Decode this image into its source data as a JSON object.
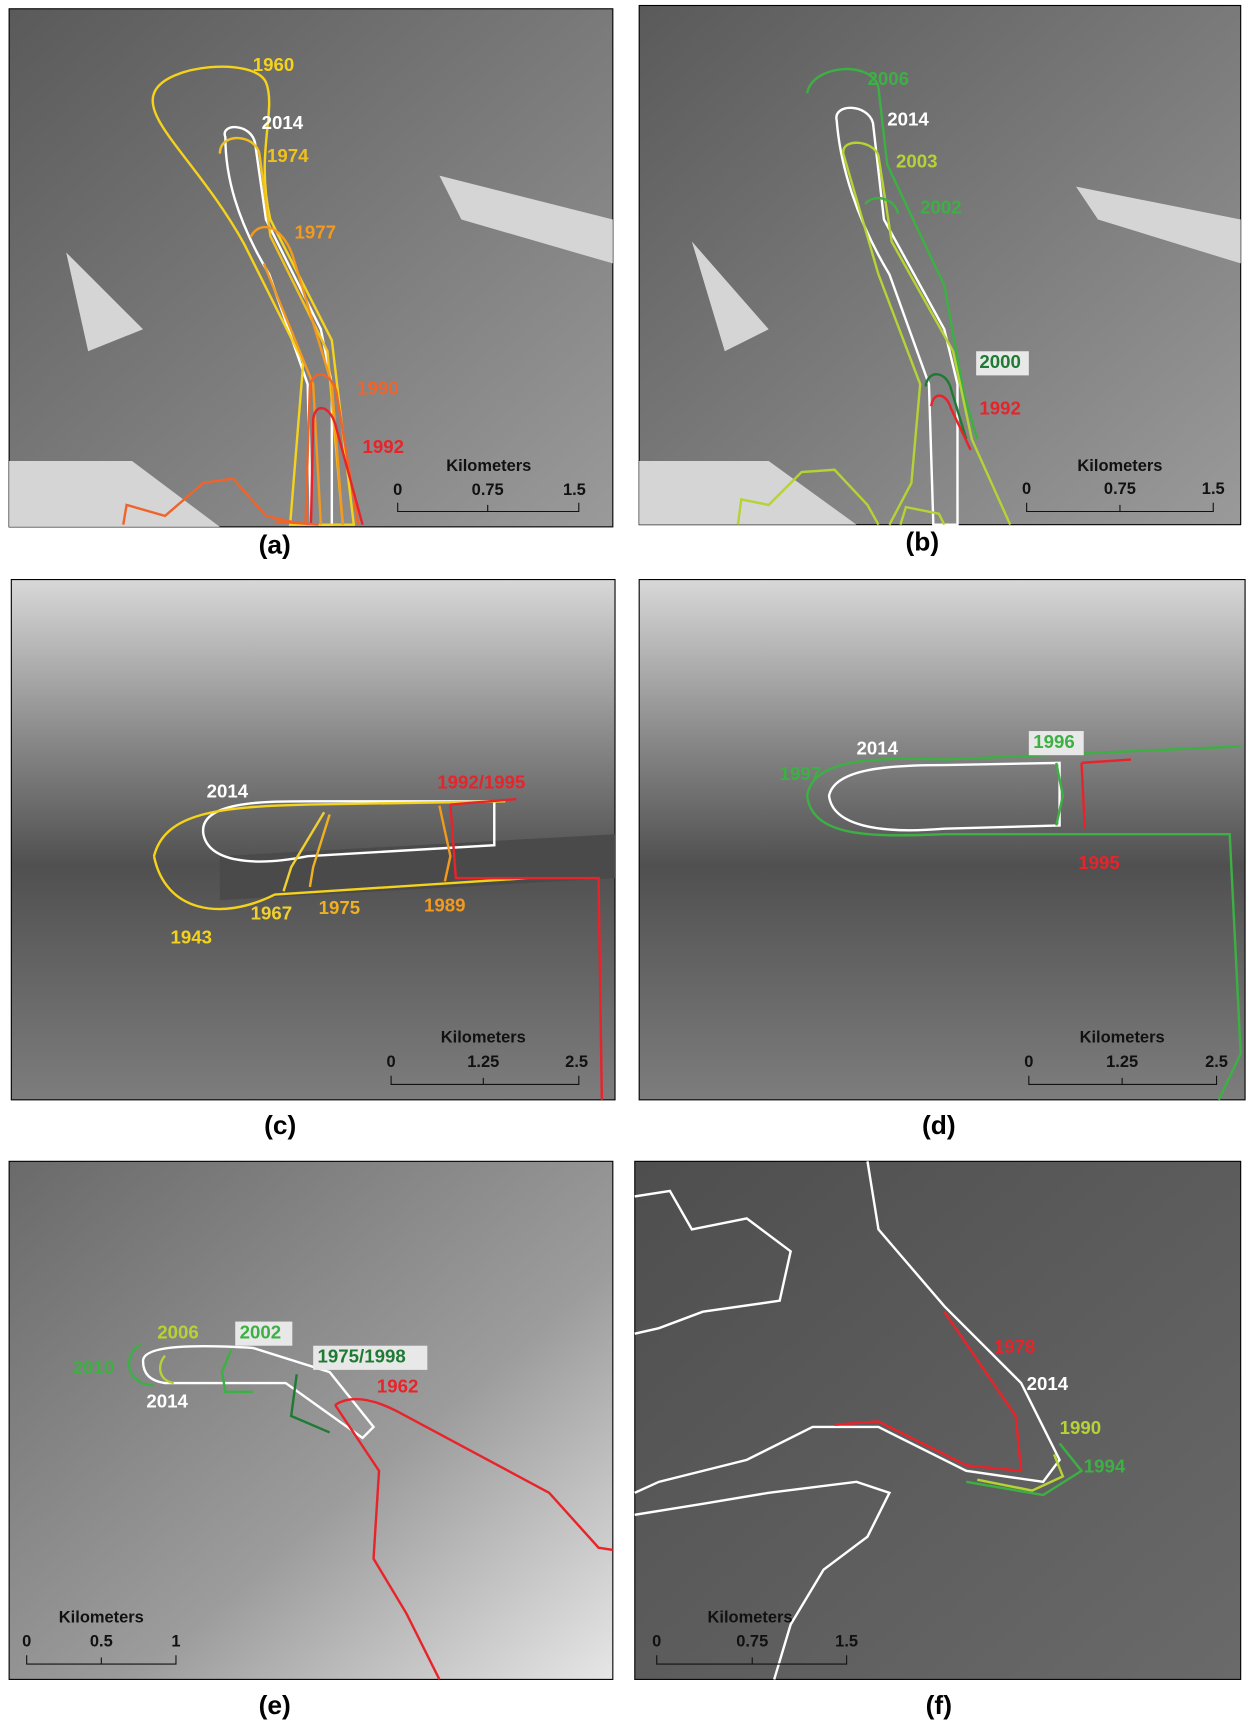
{
  "panels": [
    {
      "label": "(a)",
      "outline_labels": [
        "1960",
        "2014",
        "1974",
        "1977",
        "1990",
        "1992"
      ],
      "scale": {
        "unit": "Kilometers",
        "ticks": [
          0,
          0.75,
          1.5
        ]
      }
    },
    {
      "label": "(b)",
      "outline_labels": [
        "2006",
        "2014",
        "2003",
        "2002",
        "2000",
        "1992"
      ],
      "scale": {
        "unit": "Kilometers",
        "ticks": [
          0,
          0.75,
          1.5
        ]
      }
    },
    {
      "label": "(c)",
      "outline_labels": [
        "2014",
        "1992/1995",
        "1943",
        "1967",
        "1975",
        "1989"
      ],
      "scale": {
        "unit": "Kilometers",
        "ticks": [
          0,
          1.25,
          2.5
        ]
      }
    },
    {
      "label": "(d)",
      "outline_labels": [
        "2014",
        "1996",
        "1997",
        "1995"
      ],
      "scale": {
        "unit": "Kilometers",
        "ticks": [
          0,
          1.25,
          2.5
        ]
      }
    },
    {
      "label": "(e)",
      "outline_labels": [
        "2006",
        "2002",
        "2010",
        "2014",
        "1975/1998",
        "1962"
      ],
      "scale": {
        "unit": "Kilometers",
        "ticks": [
          0,
          0.5,
          1
        ]
      }
    },
    {
      "label": "(f)",
      "outline_labels": [
        "1978",
        "2014",
        "1990",
        "1994"
      ],
      "scale": {
        "unit": "Kilometers",
        "ticks": [
          0,
          0.75,
          1.5
        ]
      }
    }
  ]
}
